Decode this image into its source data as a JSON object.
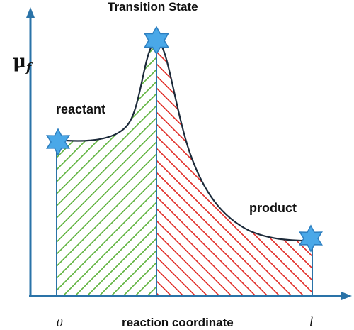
{
  "title": "Transition State",
  "y_axis": {
    "symbol": "μ",
    "subscript": "f"
  },
  "x_axis": {
    "label": "reaction coordinate",
    "start": "0",
    "end": "l"
  },
  "labels": {
    "reactant": "reactant",
    "product": "product"
  },
  "colors": {
    "axis": "#2a73a8",
    "curve": "#1c2a3a",
    "reactant_hatch": "#5cb13a",
    "product_hatch": "#e02a24",
    "star": "#4aa8e8",
    "star_outline": "#2d7fc0"
  },
  "icons": [
    "star-icon",
    "star-icon",
    "star-icon"
  ]
}
